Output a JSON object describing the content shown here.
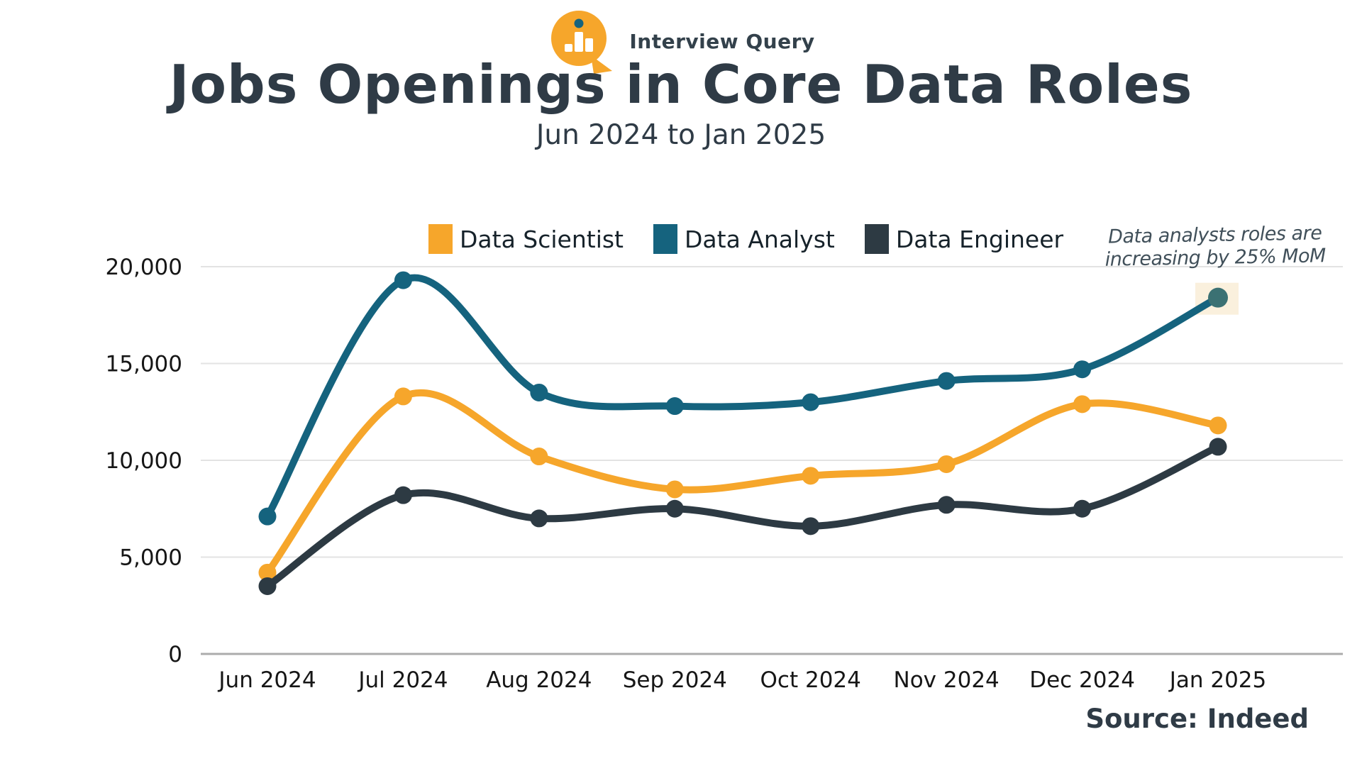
{
  "logo": {
    "brand": "Interview Query",
    "icon": "bar-chart-magnifier-icon",
    "accent_color": "#F6A62B",
    "dot_color": "#15637E"
  },
  "header": {
    "title": "Jobs Openings in Core Data Roles",
    "subtitle": "Jun 2024 to Jan 2025"
  },
  "annotation": {
    "line1": "Data analysts roles are",
    "line2": "increasing by 25% MoM"
  },
  "source": "Source: Indeed",
  "colors": {
    "gridline": "#E3E3E3",
    "zero_axis": "#ACACAC",
    "axis_text": "#161616",
    "highlight_box": "#FAF0DD",
    "highlight_point": "#3B7173"
  },
  "chart_data": {
    "type": "line",
    "title": "Jobs Openings in Core Data Roles",
    "subtitle": "Jun 2024 to Jan 2025",
    "categories": [
      "Jun 2024",
      "Jul 2024",
      "Aug 2024",
      "Sep 2024",
      "Oct 2024",
      "Nov 2024",
      "Dec 2024",
      "Jan 2025"
    ],
    "series": [
      {
        "name": "Data Scientist",
        "color": "#F6A62B",
        "values": [
          4200,
          13300,
          10200,
          8500,
          9200,
          9800,
          12900,
          11800
        ]
      },
      {
        "name": "Data Analyst",
        "color": "#15637E",
        "values": [
          7100,
          19300,
          13500,
          12800,
          13000,
          14100,
          14700,
          18400
        ],
        "highlight_last_point": true
      },
      {
        "name": "Data Engineer",
        "color": "#2D3A43",
        "values": [
          3500,
          8200,
          7000,
          7500,
          6600,
          7700,
          7500,
          10700
        ]
      }
    ],
    "ylim": [
      0,
      20000
    ],
    "y_ticks": [
      0,
      5000,
      10000,
      15000,
      20000
    ],
    "y_tick_labels": [
      "0",
      "5,000",
      "10,000",
      "15,000",
      "20,000"
    ],
    "xlabel": "",
    "ylabel": "",
    "grid": true,
    "legend_position": "top-center",
    "annotation": "Data analysts roles are increasing by 25% MoM",
    "source": "Source: Indeed"
  }
}
